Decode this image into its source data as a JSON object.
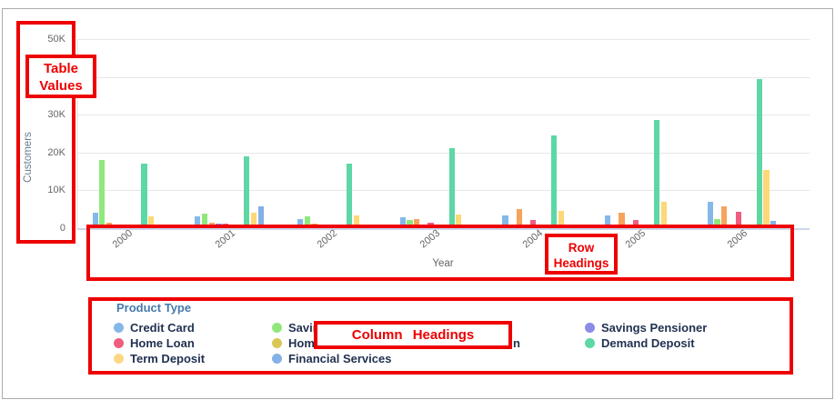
{
  "annotations": {
    "box_color": "#ee0000",
    "table_values": {
      "line1": "Table",
      "line2": "Values"
    },
    "row_headings": {
      "line1": "Row",
      "line2": "Headings"
    },
    "column_headings": {
      "label": "Column Headings"
    }
  },
  "chart_data": {
    "type": "bar",
    "title": "",
    "xlabel": "Year",
    "ylabel": "Customers",
    "values_unit": "customers",
    "ylim": [
      0,
      50000
    ],
    "y_ticks": [
      "0",
      "10K",
      "20K",
      "30K",
      "40K",
      "50K"
    ],
    "grid": true,
    "legend_position": "bottom",
    "categories": [
      "2000",
      "2001",
      "2002",
      "2003",
      "2004",
      "2005",
      "2006"
    ],
    "series": [
      {
        "name": "Credit Card",
        "color": "#85b8e8",
        "values": [
          4100,
          3300,
          2600,
          3100,
          3400,
          3600,
          7000
        ]
      },
      {
        "name": "Saving",
        "name_truncated": true,
        "color": "#90e87d",
        "values": [
          18100,
          4000,
          3300,
          2300,
          1000,
          900,
          2500
        ]
      },
      {
        "name": "",
        "occluded": true,
        "color": "#f7a35c",
        "values": [
          1600,
          1500,
          1400,
          2600,
          5100,
          4300,
          5800
        ]
      },
      {
        "name": "Savings Pensioner",
        "color": "#8c8ce8",
        "values": [
          300,
          1400,
          400,
          900,
          500,
          400,
          900
        ]
      },
      {
        "name": "Home Loan",
        "color": "#ef5d7f",
        "values": [
          900,
          1400,
          1100,
          1500,
          2200,
          2300,
          4500
        ]
      },
      {
        "name": "Home",
        "name_truncated": true,
        "color": "#d9c855",
        "values": [
          300,
          300,
          300,
          500,
          400,
          700,
          500
        ]
      },
      {
        "name": "",
        "occluded": true,
        "color": "#9ae5d9",
        "values": [
          400,
          400,
          400,
          700,
          900,
          1000,
          800
        ]
      },
      {
        "name": "Demand Deposit",
        "color": "#5dd7a5",
        "values": [
          17100,
          19000,
          17100,
          21200,
          24600,
          28700,
          39500
        ]
      },
      {
        "name": "Term Deposit",
        "color": "#fcd877",
        "values": [
          3200,
          4200,
          3500,
          3700,
          4600,
          7200,
          15400
        ]
      },
      {
        "name": "Financial Services",
        "color": "#84b1e6",
        "values": [
          500,
          6000,
          700,
          1100,
          1000,
          1000,
          2000
        ]
      }
    ]
  },
  "legend": {
    "title": "Product Type",
    "items": [
      {
        "label": "Credit Card",
        "color": "#85b8e8",
        "col": 0,
        "row": 0
      },
      {
        "label": "Home Loan",
        "color": "#ef5d7f",
        "col": 0,
        "row": 1
      },
      {
        "label": "Term Deposit",
        "color": "#fcd884",
        "col": 0,
        "row": 2
      },
      {
        "label": "Saving",
        "color": "#90e87d",
        "col": 1,
        "row": 0,
        "truncated": true
      },
      {
        "label": "Home",
        "color": "#d9c855",
        "col": 1,
        "row": 1,
        "truncated": true
      },
      {
        "label": "Financial Services",
        "color": "#84b1e6",
        "col": 1,
        "row": 2
      },
      {
        "label": "n",
        "col": 2,
        "row": 1,
        "fragment": true
      },
      {
        "label": "Savings Pensioner",
        "color": "#8c8ce8",
        "col": 3,
        "row": 0
      },
      {
        "label": "Demand Deposit",
        "color": "#5dd7a5",
        "col": 3,
        "row": 1
      }
    ]
  }
}
